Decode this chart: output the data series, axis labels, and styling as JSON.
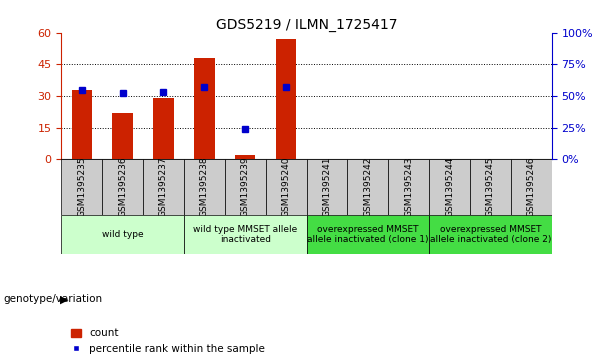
{
  "title": "GDS5219 / ILMN_1725417",
  "samples": [
    "GSM1395235",
    "GSM1395236",
    "GSM1395237",
    "GSM1395238",
    "GSM1395239",
    "GSM1395240",
    "GSM1395241",
    "GSM1395242",
    "GSM1395243",
    "GSM1395244",
    "GSM1395245",
    "GSM1395246"
  ],
  "counts": [
    33,
    22,
    29,
    48,
    2,
    57,
    0,
    0,
    0,
    0,
    0,
    0
  ],
  "percentile_ranks": [
    55,
    52,
    53,
    57,
    24,
    57,
    null,
    null,
    null,
    null,
    null,
    null
  ],
  "ylim_left": [
    0,
    60
  ],
  "ylim_right": [
    0,
    100
  ],
  "yticks_left": [
    0,
    15,
    30,
    45,
    60
  ],
  "yticks_right": [
    0,
    25,
    50,
    75,
    100
  ],
  "bar_color": "#CC2200",
  "dot_color": "#0000CC",
  "bar_width": 0.5,
  "groups": [
    {
      "label": "wild type",
      "start": 0,
      "end": 2,
      "color": "#CCFFCC"
    },
    {
      "label": "wild type MMSET allele\ninactivated",
      "start": 3,
      "end": 5,
      "color": "#CCFFCC"
    },
    {
      "label": "overexpressed MMSET\nallele inactivated (clone 1)",
      "start": 6,
      "end": 8,
      "color": "#44DD44"
    },
    {
      "label": "overexpressed MMSET\nallele inactivated (clone 2)",
      "start": 9,
      "end": 11,
      "color": "#44DD44"
    }
  ],
  "genotype_label": "genotype/variation",
  "legend_count_label": "count",
  "legend_percentile_label": "percentile rank within the sample",
  "xtick_bg": "#CCCCCC",
  "left_axis_color": "#CC2200",
  "right_axis_color": "#0000CC"
}
